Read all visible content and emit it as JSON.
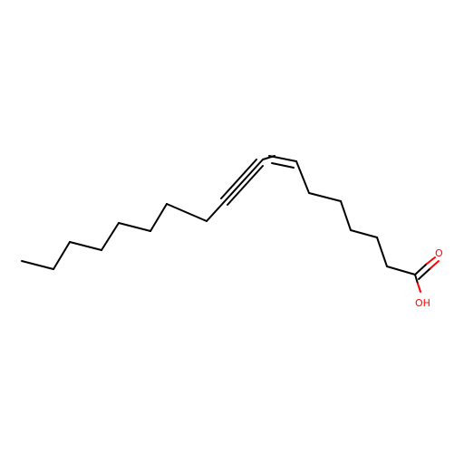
{
  "molecule": {
    "atom_labels": {
      "carbonyl_oxygen": "O",
      "hydroxyl": "OH"
    },
    "colors": {
      "bond": "#000000",
      "heteroatom": "#ff0000",
      "background": "#ffffff"
    }
  }
}
